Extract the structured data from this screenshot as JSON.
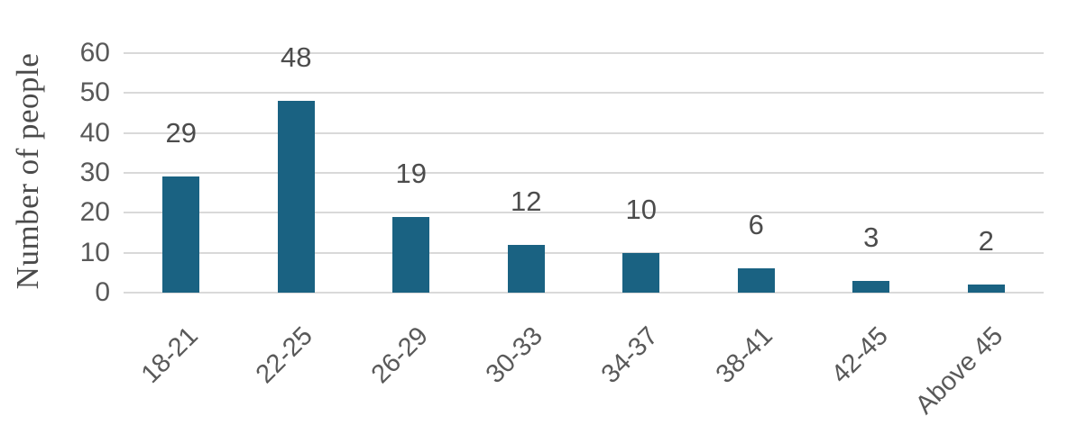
{
  "chart_data": {
    "type": "bar",
    "title": "",
    "xlabel": "",
    "ylabel": "Number of people",
    "categories": [
      "18-21",
      "22-25",
      "26-29",
      "30-33",
      "34-37",
      "38-41",
      "42-45",
      "Above 45"
    ],
    "values": [
      29,
      48,
      19,
      12,
      10,
      6,
      3,
      2
    ],
    "ylim": [
      0,
      60
    ],
    "yticks": [
      0,
      10,
      20,
      30,
      40,
      50,
      60
    ],
    "grid": true,
    "legend_position": "none",
    "x_label_rotation_deg": 45,
    "colors": {
      "bar": "#1a6282",
      "gridline": "#d9d9d9",
      "tick_label": "#595959",
      "value_label": "#4c4c4c",
      "axis_title": "#4a4a4a",
      "background": "#ffffff"
    }
  }
}
